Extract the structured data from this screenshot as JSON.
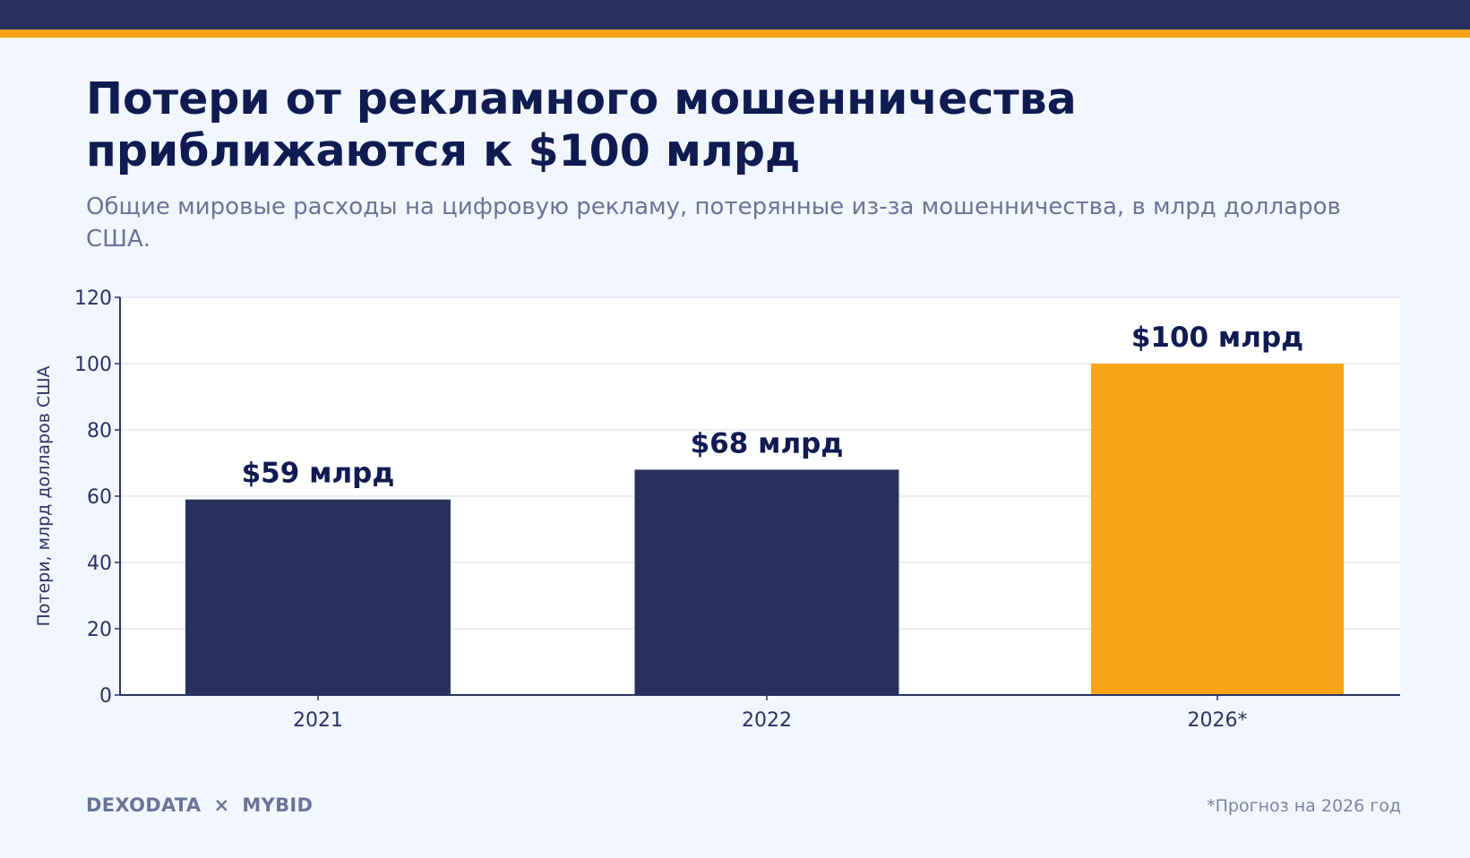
{
  "title": "Потери от рекламного мошенничества приближаются к $100 млрд",
  "subtitle": "Общие мировые расходы на цифровую рекламу, потерянные из-за мошенничества, в млрд долларов США.",
  "chart_data": {
    "type": "bar",
    "categories": [
      "2021",
      "2022",
      "2026*"
    ],
    "values": [
      59,
      68,
      100
    ],
    "data_labels": [
      "$59 млрд",
      "$68 млрд",
      "$100 млрд"
    ],
    "ylabel": "Потери, млрд долларов США",
    "xlabel": "",
    "ylim": [
      0,
      120
    ],
    "yticks": [
      0,
      20,
      40,
      60,
      80,
      100,
      120
    ],
    "grid": true,
    "bar_colors": [
      "#28325f",
      "#28325f",
      "#f8a518"
    ]
  },
  "footer": {
    "brand_left": "DEXODATA",
    "brand_sep": "×",
    "brand_right": "MYBID",
    "footnote": "*Прогноз на 2026 год"
  },
  "colors": {
    "background": "#f2f7fe",
    "top_bar": "#27305c",
    "accent": "#f8a21a",
    "title": "#101b52",
    "subtitle": "#6b7497"
  }
}
